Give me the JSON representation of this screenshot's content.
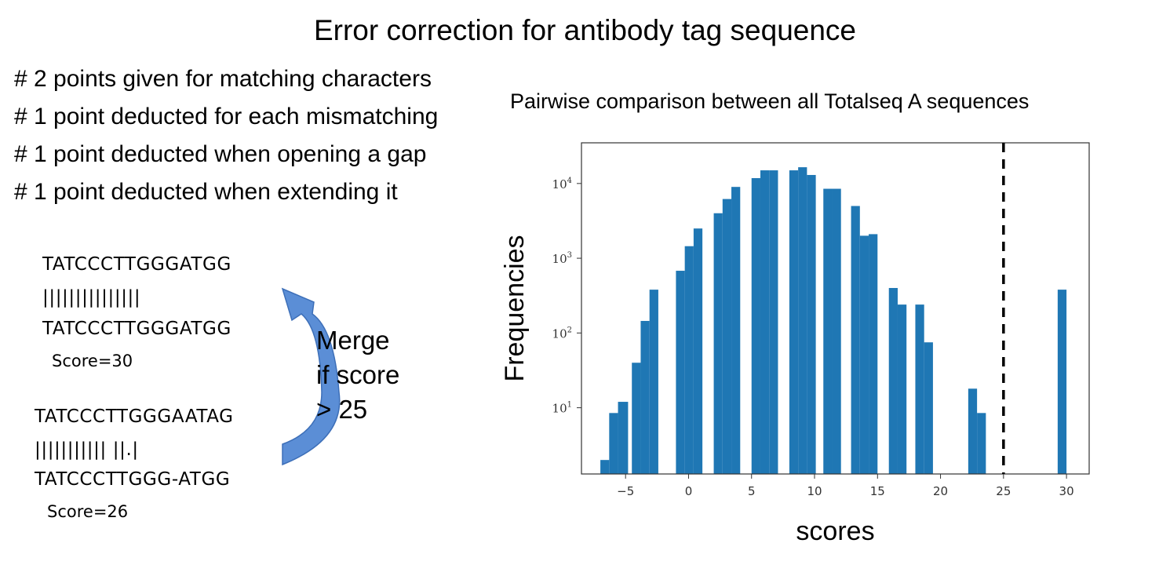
{
  "title": "Error correction for antibody tag sequence",
  "rules": [
    "# 2 points given for matching characters",
    "# 1 point deducted for each mismatching",
    "# 1 point deducted when opening a gap",
    "# 1 point deducted when extending it"
  ],
  "alignment1": {
    "top": "TATCCCTTGGGATGG",
    "bars": "|||||||||||||||",
    "bottom": "TATCCCTTGGGATGG",
    "score": "Score=30"
  },
  "alignment2": {
    "top": "TATCCCTTGGGAATAG",
    "bars": "||||||||||| ||.|",
    "bottom": "TATCCCTTGGG-ATGG",
    "score": "Score=26"
  },
  "merge_text": [
    "Merge",
    "if score",
    "> 25"
  ],
  "arrow_color": "#5b8ed6",
  "chart_title": "Pairwise comparison between all Totalseq A sequences",
  "chart_data": {
    "type": "bar",
    "title": "",
    "xlabel": "scores",
    "ylabel": "Frequencies",
    "yscale": "log",
    "xlim": [
      -8.5,
      31.8
    ],
    "ylim": [
      1.3,
      35000
    ],
    "xticks": [
      -5,
      0,
      5,
      10,
      15,
      20,
      25,
      30
    ],
    "xtick_labels": [
      "−5",
      "0",
      "5",
      "10",
      "15",
      "20",
      "25",
      "30"
    ],
    "yticks": [
      10,
      100,
      1000,
      10000
    ],
    "ytick_labels": [
      {
        "base": "10",
        "exp": "1"
      },
      {
        "base": "10",
        "exp": "2"
      },
      {
        "base": "10",
        "exp": "3"
      },
      {
        "base": "10",
        "exp": "4"
      }
    ],
    "bar_color": "#1f77b4",
    "threshold_line": {
      "x": 25,
      "style": "dashed",
      "color": "#000000"
    },
    "bars": [
      {
        "x0": -7.0,
        "x1": -6.3,
        "value": 2
      },
      {
        "x0": -6.3,
        "x1": -5.6,
        "value": 8.5
      },
      {
        "x0": -5.6,
        "x1": -4.8,
        "value": 12
      },
      {
        "x0": -4.5,
        "x1": -3.8,
        "value": 40
      },
      {
        "x0": -3.8,
        "x1": -3.1,
        "value": 145
      },
      {
        "x0": -3.1,
        "x1": -2.4,
        "value": 380
      },
      {
        "x0": -1.0,
        "x1": -0.3,
        "value": 680
      },
      {
        "x0": -0.3,
        "x1": 0.4,
        "value": 1450
      },
      {
        "x0": 0.4,
        "x1": 1.1,
        "value": 2500
      },
      {
        "x0": 2.0,
        "x1": 2.7,
        "value": 4000
      },
      {
        "x0": 2.7,
        "x1": 3.4,
        "value": 6200
      },
      {
        "x0": 3.4,
        "x1": 4.1,
        "value": 9000
      },
      {
        "x0": 5.0,
        "x1": 5.7,
        "value": 11800
      },
      {
        "x0": 5.7,
        "x1": 6.4,
        "value": 15000
      },
      {
        "x0": 6.4,
        "x1": 7.1,
        "value": 15000
      },
      {
        "x0": 8.0,
        "x1": 8.7,
        "value": 15000
      },
      {
        "x0": 8.7,
        "x1": 9.4,
        "value": 16500
      },
      {
        "x0": 9.4,
        "x1": 10.1,
        "value": 13000
      },
      {
        "x0": 10.7,
        "x1": 11.4,
        "value": 8500
      },
      {
        "x0": 11.4,
        "x1": 12.1,
        "value": 8500
      },
      {
        "x0": 12.9,
        "x1": 13.6,
        "value": 5000
      },
      {
        "x0": 13.6,
        "x1": 14.3,
        "value": 2000
      },
      {
        "x0": 14.3,
        "x1": 15.0,
        "value": 2100
      },
      {
        "x0": 15.9,
        "x1": 16.6,
        "value": 400
      },
      {
        "x0": 16.6,
        "x1": 17.3,
        "value": 240
      },
      {
        "x0": 18.0,
        "x1": 18.7,
        "value": 240
      },
      {
        "x0": 18.7,
        "x1": 19.4,
        "value": 75
      },
      {
        "x0": 22.2,
        "x1": 22.9,
        "value": 18
      },
      {
        "x0": 22.9,
        "x1": 23.6,
        "value": 8.5
      },
      {
        "x0": 29.3,
        "x1": 30.0,
        "value": 380
      }
    ]
  }
}
